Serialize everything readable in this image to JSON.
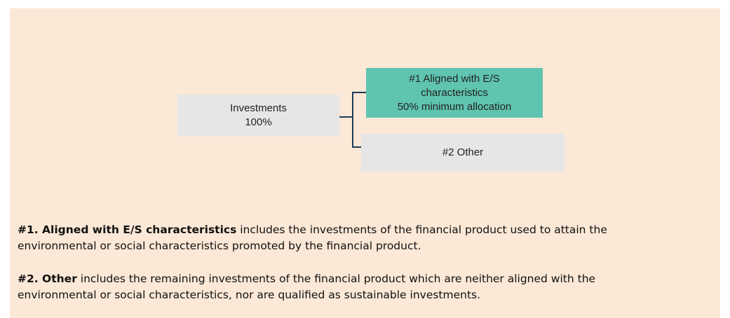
{
  "nodes": [
    {
      "lines": [
        "Investments",
        "100%"
      ]
    },
    {
      "lines": [
        "#1 Aligned with E/S",
        "characteristics",
        "50% minimum allocation"
      ]
    },
    {
      "lines": [
        "#2 Other"
      ]
    }
  ],
  "notes": [
    {
      "bold": "#1. Aligned with E/S characteristics",
      "text": " includes the investments of the financial product used to attain the environmental or social characteristics promoted by the financial product."
    },
    {
      "bold": "#2. Other",
      "text": " includes the remaining investments of the financial product which are neither aligned with the environmental or social characteristics, nor are qualified as sustainable investments."
    }
  ]
}
